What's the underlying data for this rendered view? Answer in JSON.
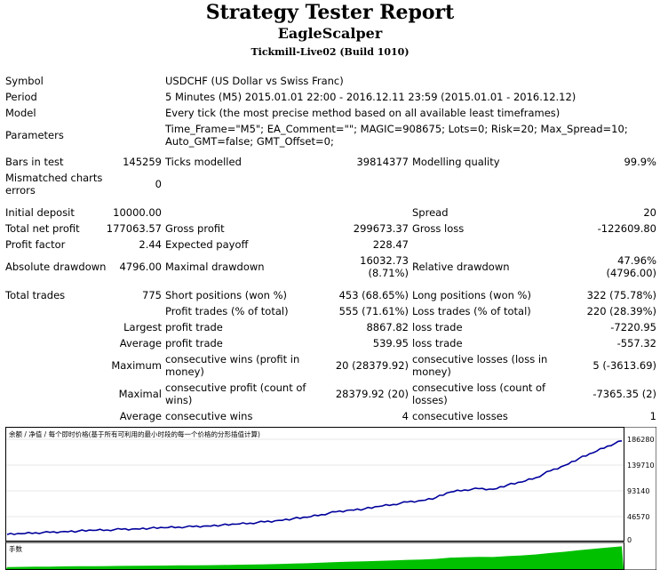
{
  "title": "Strategy Tester Report",
  "expert": "EagleScalper",
  "server": "Tickmill-Live02 (Build 1010)",
  "info": {
    "symbol_label": "Symbol",
    "symbol_value": "USDCHF (US Dollar vs Swiss Franc)",
    "period_label": "Period",
    "period_value": "5 Minutes (M5) 2015.01.01 22:00 - 2016.12.11 23:59 (2015.01.01 - 2016.12.12)",
    "model_label": "Model",
    "model_value": "Every tick (the most precise method based on all available least timeframes)",
    "parameters_label": "Parameters",
    "parameters_line1": "Time_Frame=\"M5\"; EA_Comment=\"\"; MAGIC=908675; Lots=0; Risk=20; Max_Spread=10;",
    "parameters_line2": "Auto_GMT=false; GMT_Offset=0;"
  },
  "stats": {
    "bars_label": "Bars in test",
    "bars_value": "145259",
    "ticks_label": "Ticks modelled",
    "ticks_value": "39814377",
    "quality_label": "Modelling quality",
    "quality_value": "99.9%",
    "mismatch_label1": "Mismatched charts",
    "mismatch_label2": "errors",
    "mismatch_value": "0",
    "deposit_label": "Initial deposit",
    "deposit_value": "10000.00",
    "spread_label": "Spread",
    "spread_value": "20",
    "net_label": "Total net profit",
    "net_value": "177063.57",
    "gross_profit_label": "Gross profit",
    "gross_profit_value": "299673.37",
    "gross_loss_label": "Gross loss",
    "gross_loss_value": "-122609.80",
    "pf_label": "Profit factor",
    "pf_value": "2.44",
    "ep_label": "Expected payoff",
    "ep_value": "228.47",
    "abs_dd_label": "Absolute drawdown",
    "abs_dd_value": "4796.00",
    "max_dd_label": "Maximal drawdown",
    "max_dd_value1": "16032.73",
    "max_dd_value2": "(8.71%)",
    "rel_dd_label": "Relative drawdown",
    "rel_dd_value1": "47.96%",
    "rel_dd_value2": "(4796.00)"
  },
  "trades": {
    "total_label": "Total trades",
    "total_value": "775",
    "short_label": "Short positions (won %)",
    "short_value": "453 (68.65%)",
    "long_label": "Long positions (won %)",
    "long_value": "322 (75.78%)",
    "pt_label": "Profit trades (% of total)",
    "pt_value": "555 (71.61%)",
    "lt_label": "Loss trades (% of total)",
    "lt_value": "220 (28.39%)",
    "largest_label": "Largest",
    "lp_label": "profit trade",
    "lp_value": "8867.82",
    "ll_label": "loss trade",
    "ll_value": "-7220.95",
    "average_label": "Average",
    "ap_label": "profit trade",
    "ap_value": "539.95",
    "al_label": "loss trade",
    "al_value": "-557.32",
    "maximum_label": "Maximum",
    "mcw_label1": "consecutive wins (profit in",
    "mcw_label2": "money)",
    "mcw_value": "20 (28379.92)",
    "mcl_label1": "consecutive losses (loss in",
    "mcl_label2": "money)",
    "mcl_value": "5 (-3613.69)",
    "maximal_label": "Maximal",
    "mcp_label1": "consecutive profit (count of",
    "mcp_label2": "wins)",
    "mcp_value": "28379.92 (20)",
    "mcloss_label1": "consecutive loss (count of",
    "mcloss_label2": "losses)",
    "mcloss_value": "-7365.35 (2)",
    "average2_label": "Average",
    "acw_label": "consecutive wins",
    "acw_value": "4",
    "acl_label": "consecutive losses",
    "acl_value": "1"
  },
  "chart_data": {
    "type": "line",
    "legend": "余额 / 净值 / 每个即时价格(基于所有可利用的最小时段的每一个价格的分形插值计算)",
    "lots_label": "手数",
    "y_ticks": [
      "186280",
      "139710",
      "93140",
      "46570",
      "0"
    ],
    "ylim": [
      0,
      190000
    ],
    "series": [
      {
        "values": [
          10000,
          11500,
          13200,
          13900,
          15600,
          16400,
          17800,
          18500,
          19800,
          20600,
          21900,
          22700,
          24000,
          24800,
          26200,
          27700,
          29400,
          31500,
          33800,
          36600,
          39900,
          42500,
          47600,
          52800,
          56300,
          58300,
          62900,
          66700,
          71300,
          74300,
          79700,
          90200,
          94200,
          96700,
          95500,
          103500,
          109100,
          117600,
          130300,
          140600,
          153700,
          164600,
          177000,
          187000
        ]
      }
    ],
    "colors": {
      "line": "#00009c",
      "lots": "#00c000",
      "lots_light": "#b8e8b8"
    }
  }
}
